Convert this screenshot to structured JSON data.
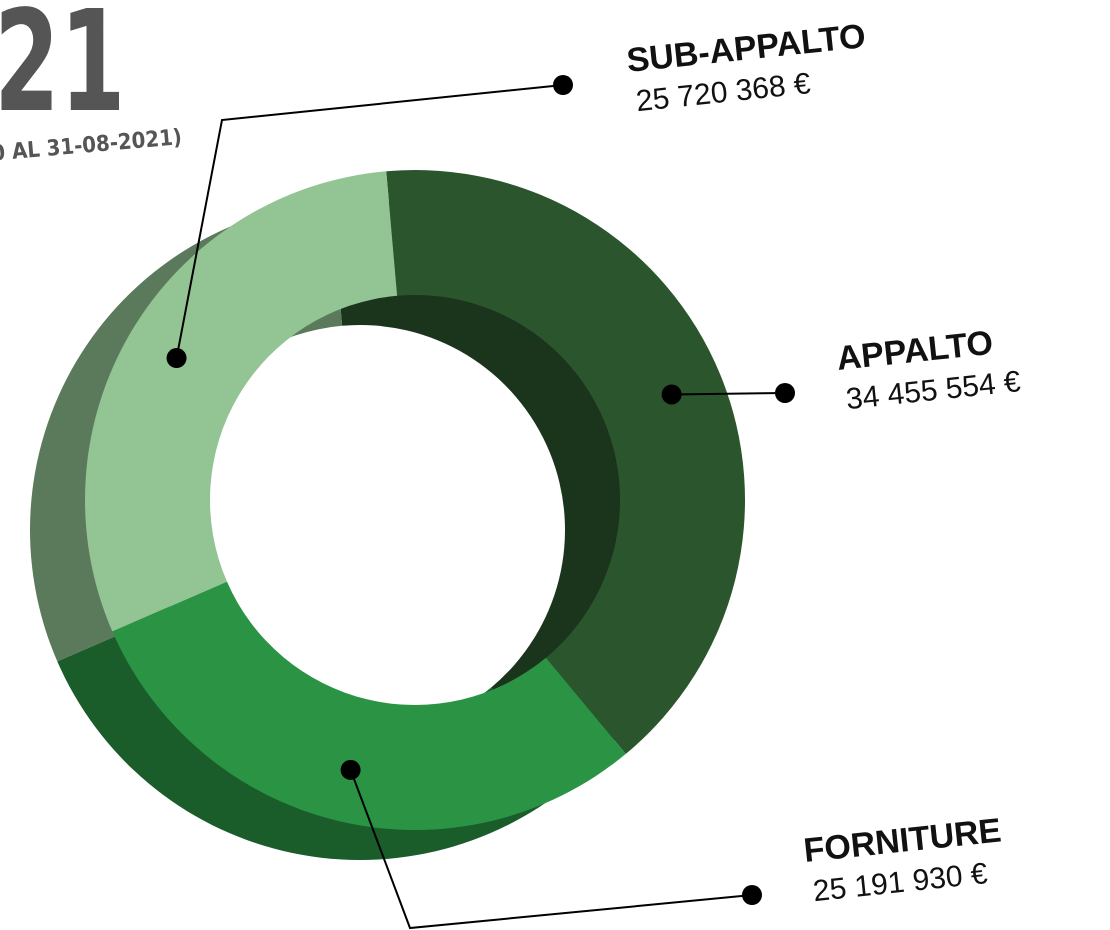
{
  "chart_data": {
    "type": "pie",
    "title": "21",
    "subtitle": "0 AL 31-08-2021)",
    "categories": [
      "APPALTO",
      "FORNITURE",
      "SUB-APPALTO"
    ],
    "values": [
      34455554,
      25191930,
      25720368
    ],
    "value_labels": [
      "34 455 554 €",
      "25 191 930 €",
      "25 720 368 €"
    ],
    "colors": [
      "#2b552d",
      "#2a9444",
      "#93c493"
    ]
  }
}
